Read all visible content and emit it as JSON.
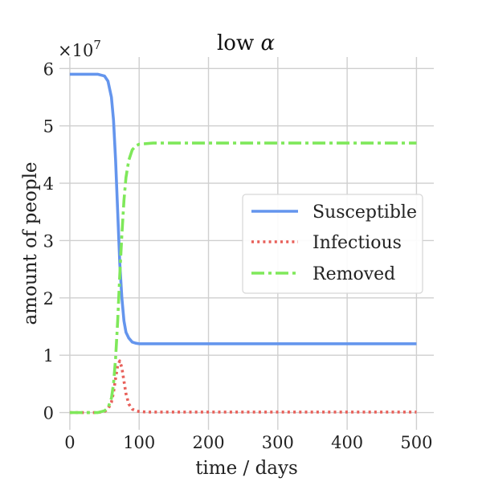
{
  "chart_data": {
    "type": "line",
    "title": "low α",
    "title_prefix": "low ",
    "title_symbol": "α",
    "xlabel": "time / days",
    "ylabel": "amount of people",
    "y_multiplier": "×10",
    "y_multiplier_exp": "7",
    "xlim": [
      -15,
      525
    ],
    "ylim": [
      -0.3,
      6.2
    ],
    "x_ticks": [
      0,
      100,
      200,
      300,
      400,
      500
    ],
    "y_ticks": [
      0,
      1,
      2,
      3,
      4,
      5,
      6
    ],
    "grid": true,
    "legend_position": "center-right",
    "series": [
      {
        "name": "Susceptible",
        "color": "#6495ED",
        "style": "solid",
        "x": [
          0,
          20,
          40,
          50,
          55,
          60,
          63,
          66,
          69,
          72,
          75,
          78,
          81,
          85,
          90,
          95,
          100,
          110,
          120,
          150,
          200,
          300,
          400,
          500
        ],
        "y": [
          5.9,
          5.9,
          5.9,
          5.87,
          5.78,
          5.5,
          5.1,
          4.4,
          3.5,
          2.6,
          2.0,
          1.6,
          1.4,
          1.3,
          1.23,
          1.21,
          1.2,
          1.2,
          1.2,
          1.2,
          1.2,
          1.2,
          1.2,
          1.2
        ]
      },
      {
        "name": "Infectious",
        "color": "#E8605A",
        "style": "dotted",
        "x": [
          0,
          20,
          40,
          50,
          55,
          60,
          63,
          66,
          69,
          72,
          75,
          78,
          81,
          85,
          90,
          95,
          100,
          110,
          120,
          150,
          200,
          300,
          400,
          500
        ],
        "y": [
          0,
          0,
          0,
          0.02,
          0.06,
          0.18,
          0.35,
          0.6,
          0.82,
          0.9,
          0.78,
          0.55,
          0.33,
          0.15,
          0.06,
          0.03,
          0.02,
          0.01,
          0.01,
          0.01,
          0.01,
          0.01,
          0.01,
          0.01
        ]
      },
      {
        "name": "Removed",
        "color": "#7FE85A",
        "style": "dashdot",
        "x": [
          0,
          20,
          40,
          50,
          55,
          60,
          63,
          66,
          69,
          72,
          75,
          78,
          81,
          85,
          90,
          95,
          100,
          110,
          120,
          150,
          200,
          300,
          400,
          500
        ],
        "y": [
          0,
          0,
          0,
          0.03,
          0.08,
          0.25,
          0.5,
          0.95,
          1.6,
          2.4,
          3.1,
          3.7,
          4.1,
          4.4,
          4.58,
          4.65,
          4.68,
          4.69,
          4.7,
          4.7,
          4.7,
          4.7,
          4.7,
          4.7
        ]
      }
    ]
  }
}
